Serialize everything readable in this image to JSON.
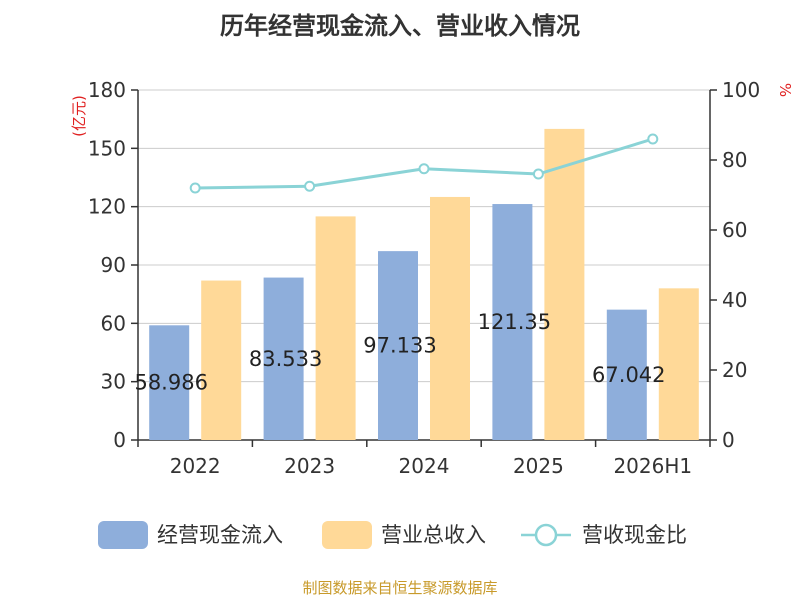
{
  "chart_data": {
    "type": "bar",
    "title": "历年经营现金流入、营业收入情况",
    "categories": [
      "2022",
      "2023",
      "2024",
      "2025",
      "2026H1"
    ],
    "series": [
      {
        "name": "经营现金流入",
        "axis": "left",
        "color": "#8eaedb",
        "values": [
          58.986,
          83.533,
          97.133,
          121.35,
          67.042
        ],
        "data_labels": [
          "58.986",
          "83.533",
          "97.133",
          "121.35",
          "67.042"
        ]
      },
      {
        "name": "营业总收入",
        "axis": "left",
        "color": "#ffd998",
        "values": [
          82,
          115,
          125,
          160,
          78
        ]
      },
      {
        "name": "营收现金比",
        "type": "line",
        "axis": "right",
        "color": "#8ad3d6",
        "values": [
          72,
          72.5,
          77.5,
          76,
          86
        ]
      }
    ],
    "y_left": {
      "unit": "(亿元)",
      "min": 0,
      "max": 180,
      "ticks": [
        "0",
        "30",
        "60",
        "90",
        "120",
        "150",
        "180"
      ]
    },
    "y_right": {
      "unit": "%",
      "min": 0,
      "max": 100,
      "ticks": [
        "0",
        "20",
        "40",
        "60",
        "80",
        "100"
      ]
    },
    "grid": true,
    "legend_position": "bottom"
  },
  "source_note": "制图数据来自恒生聚源数据库"
}
